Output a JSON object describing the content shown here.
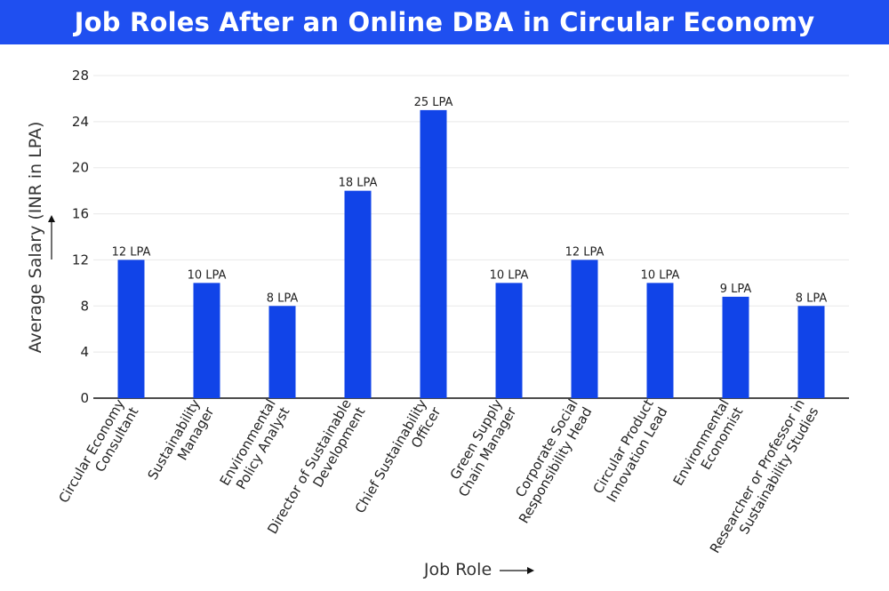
{
  "title": "Job Roles After an Online DBA in Circular Economy",
  "colors": {
    "header": "#1f4ff0",
    "bar": "#1144e8",
    "grid": "#e8e8e8",
    "axis": "#111111"
  },
  "chart_data": {
    "type": "bar",
    "title": "Job Roles After an Online DBA in Circular Economy",
    "xlabel": "Job Role",
    "ylabel": "Average Salary (INR in LPA)",
    "ylim": [
      0,
      28
    ],
    "yticks": [
      0,
      4,
      8,
      12,
      16,
      20,
      24,
      28
    ],
    "grid": true,
    "categories": [
      [
        "Circular Economy",
        "Consultant"
      ],
      [
        "Sustainability",
        "Manager"
      ],
      [
        "Environmental",
        "Policy Analyst"
      ],
      [
        "Director of Sustainable",
        "Development"
      ],
      [
        "Chief Sustainability",
        "Officer"
      ],
      [
        "Green Supply",
        "Chain Manager"
      ],
      [
        "Corporate Social",
        "Responsibility Head"
      ],
      [
        "Circular Product",
        "Innovation Lead"
      ],
      [
        "Environmental",
        "Economist"
      ],
      [
        "Researcher or Professor in",
        "Sustainability Studies"
      ]
    ],
    "values": [
      12,
      10,
      8,
      18,
      25,
      10,
      12,
      10,
      8.8,
      8
    ],
    "data_labels": [
      "12 LPA",
      "10 LPA",
      "8 LPA",
      "18 LPA",
      "25 LPA",
      "10 LPA",
      "12 LPA",
      "10 LPA",
      "9 LPA",
      "8 LPA"
    ]
  }
}
